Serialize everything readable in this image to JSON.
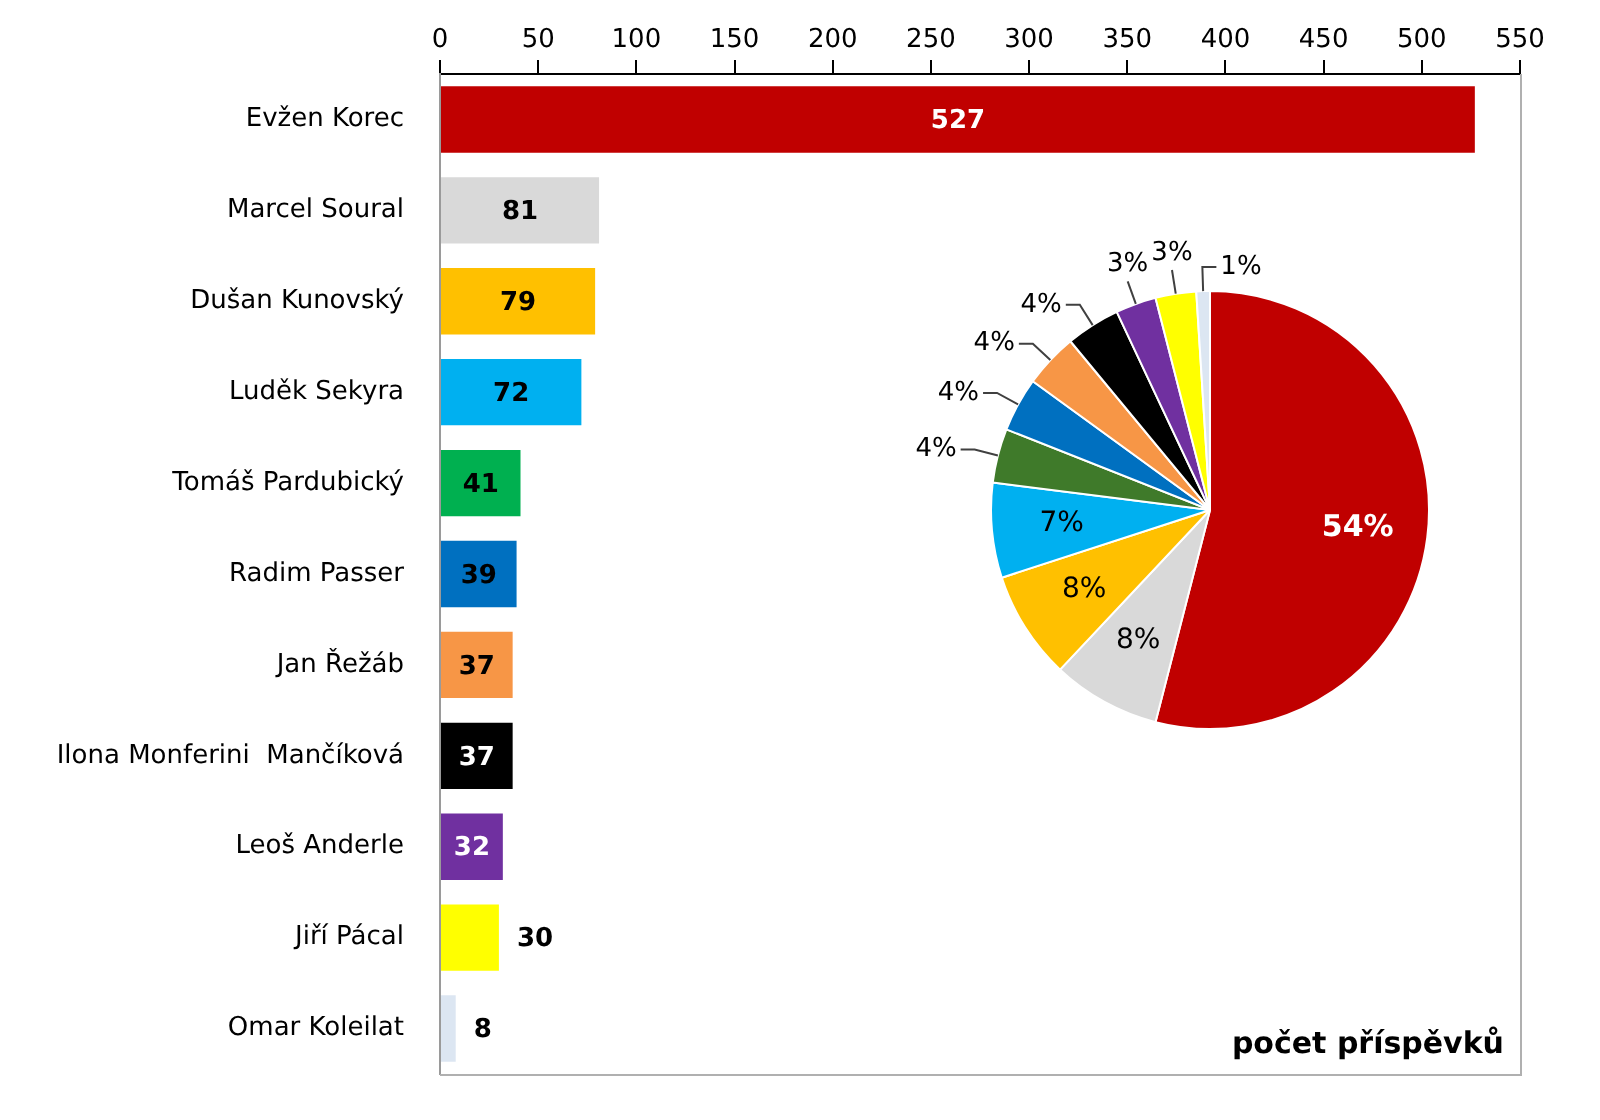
{
  "chart_data": [
    {
      "type": "bar",
      "orientation": "horizontal",
      "xlabel": "počet příspěvků",
      "categories": [
        "Evžen Korec",
        "Marcel Soural",
        "Dušan Kunovský",
        "Luděk Sekyra",
        "Tomáš Pardubický",
        "Radim Passer",
        "Jan Řežáb",
        "Ilona Monferini  Mančíková",
        "Leoš Anderle",
        "Jiří Pácal",
        "Omar Koleilat"
      ],
      "values": [
        527,
        81,
        79,
        72,
        41,
        39,
        37,
        37,
        32,
        30,
        8
      ],
      "colors": [
        "#c00000",
        "#d9d9d9",
        "#ffc000",
        "#00b0f0",
        "#00b050",
        "#0070c0",
        "#f79646",
        "#000000",
        "#7030a0",
        "#ffff00",
        "#dce6f2"
      ],
      "xlim": [
        0,
        550
      ],
      "xticks": [
        0,
        50,
        100,
        150,
        200,
        250,
        300,
        350,
        400,
        450,
        500,
        550
      ],
      "data_labels": true
    },
    {
      "type": "pie",
      "categories": [
        null,
        null,
        null,
        null,
        null,
        null,
        null,
        null,
        null,
        null,
        null
      ],
      "values": [
        54,
        8,
        8,
        7,
        4,
        4,
        4,
        4,
        3,
        3,
        1
      ],
      "colors": [
        "#c00000",
        "#d9d9d9",
        "#ffc000",
        "#00b0f0",
        "#3f7a2a",
        "#0070c0",
        "#f79646",
        "#000000",
        "#7030a0",
        "#ffff00",
        "#dce6f2"
      ],
      "value_labels": [
        "54%",
        "8%",
        "8%",
        "7%",
        "4%",
        "4%",
        "4%",
        "4%",
        "3%",
        "3%",
        "1%"
      ]
    }
  ]
}
